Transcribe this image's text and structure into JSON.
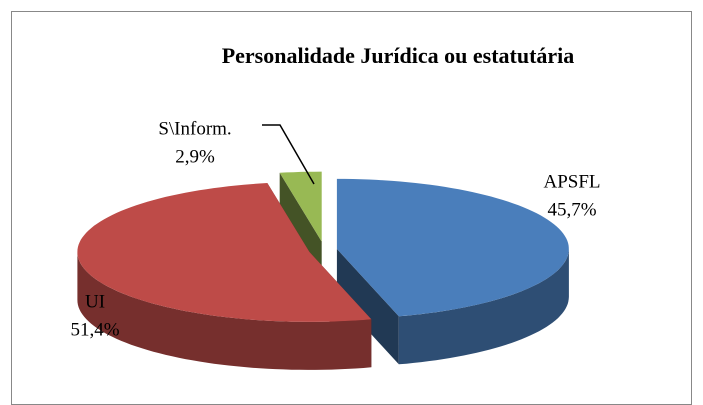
{
  "chart_data": {
    "type": "pie3d",
    "title": "Personalidade Jurídica ou estatutária",
    "categories": [
      "APSFL",
      "UI",
      "S\\Inform."
    ],
    "values": [
      45.7,
      51.4,
      2.9
    ],
    "value_labels": [
      "45,7%",
      "51,4%",
      "2,9%"
    ],
    "colors": [
      "#4a7ebb",
      "#be4b48",
      "#98b954"
    ]
  }
}
